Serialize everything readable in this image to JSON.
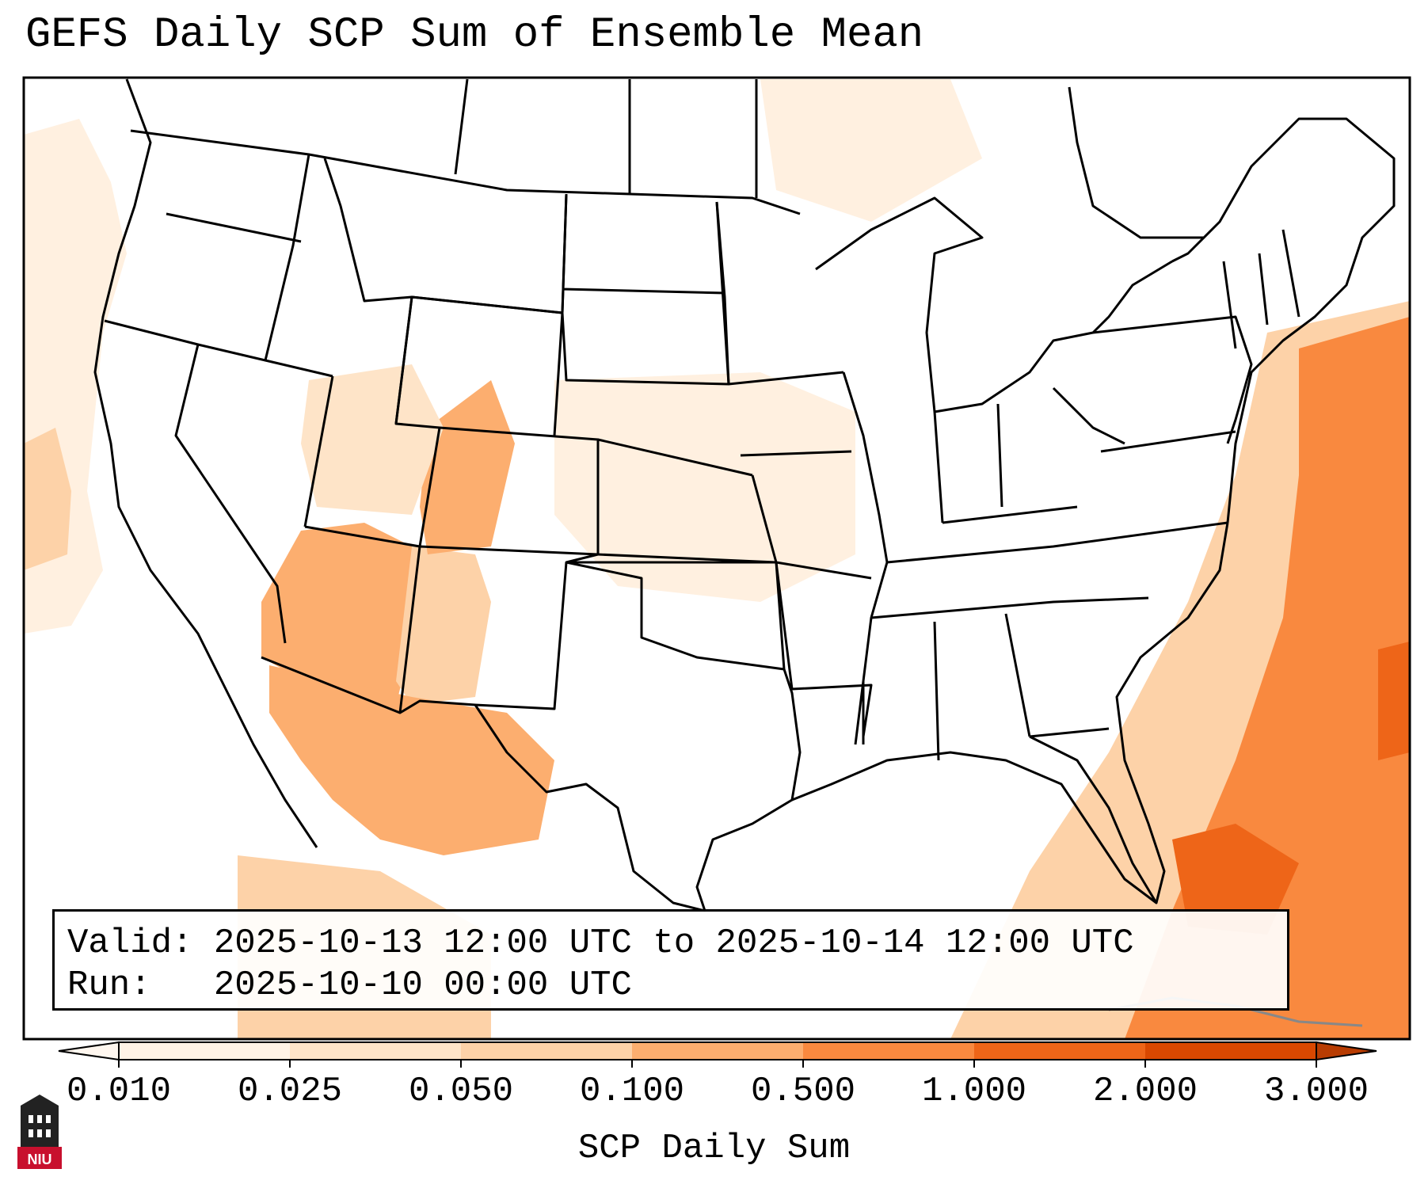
{
  "title": "GEFS Daily SCP Sum of Ensemble Mean",
  "info": {
    "valid_line": "Valid: 2025-10-13 12:00 UTC to 2025-10-14 12:00 UTC",
    "run_line": "Run:   2025-10-10 00:00 UTC"
  },
  "colorbar": {
    "label": "SCP Daily Sum",
    "ticks": [
      "0.010",
      "0.025",
      "0.050",
      "0.100",
      "0.500",
      "1.000",
      "2.000",
      "3.000"
    ],
    "bins": [
      {
        "from": "0.010",
        "to": "0.025",
        "color": "#fff3e6"
      },
      {
        "from": "0.025",
        "to": "0.050",
        "color": "#fee4c8"
      },
      {
        "from": "0.050",
        "to": "0.100",
        "color": "#fdd2a8"
      },
      {
        "from": "0.100",
        "to": "0.500",
        "color": "#fcae6f"
      },
      {
        "from": "0.500",
        "to": "1.000",
        "color": "#f9893f"
      },
      {
        "from": "1.000",
        "to": "2.000",
        "color": "#ee6518"
      },
      {
        "from": "2.000",
        "to": "3.000",
        "color": "#d94801"
      }
    ],
    "under_color": "#fff7ef",
    "over_color": "#b83c02"
  },
  "logo": {
    "text": "NIU",
    "colors": {
      "bg": "#c8102e",
      "dark": "#222222"
    }
  },
  "map": {
    "projection": "lambert-conformal",
    "region": "CONUS",
    "line_color": "#000000"
  }
}
